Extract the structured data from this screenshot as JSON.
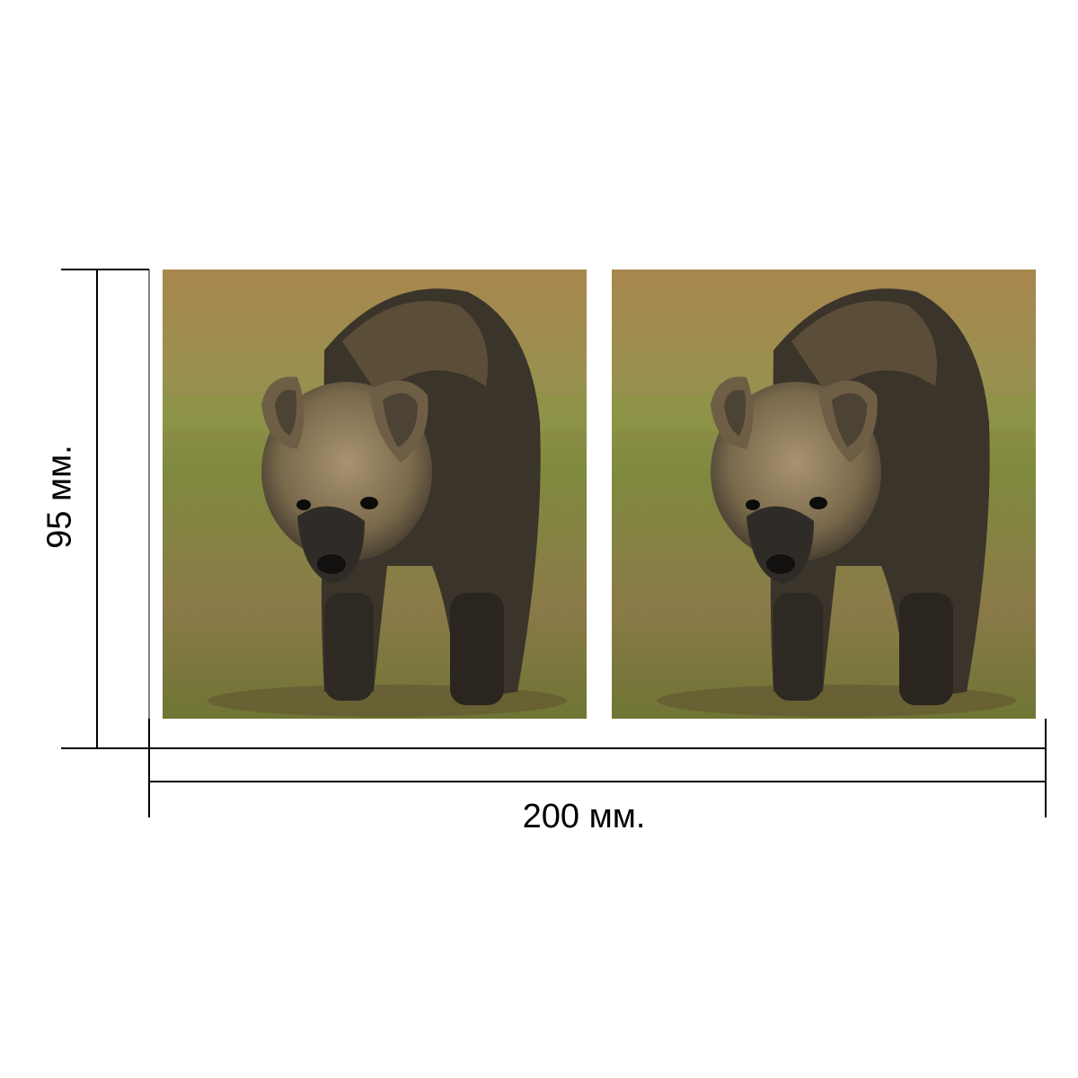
{
  "dimensions": {
    "width_label": "200 мм.",
    "height_label": "95 мм."
  },
  "photos": [
    {
      "subject": "hyena"
    },
    {
      "subject": "hyena"
    }
  ],
  "colors": {
    "line": "#000000",
    "background": "#ffffff",
    "grass": "#7a8a3a",
    "sky_blur": "#b89a58",
    "fur_dark": "#3b342a",
    "fur_light": "#a08a62"
  }
}
